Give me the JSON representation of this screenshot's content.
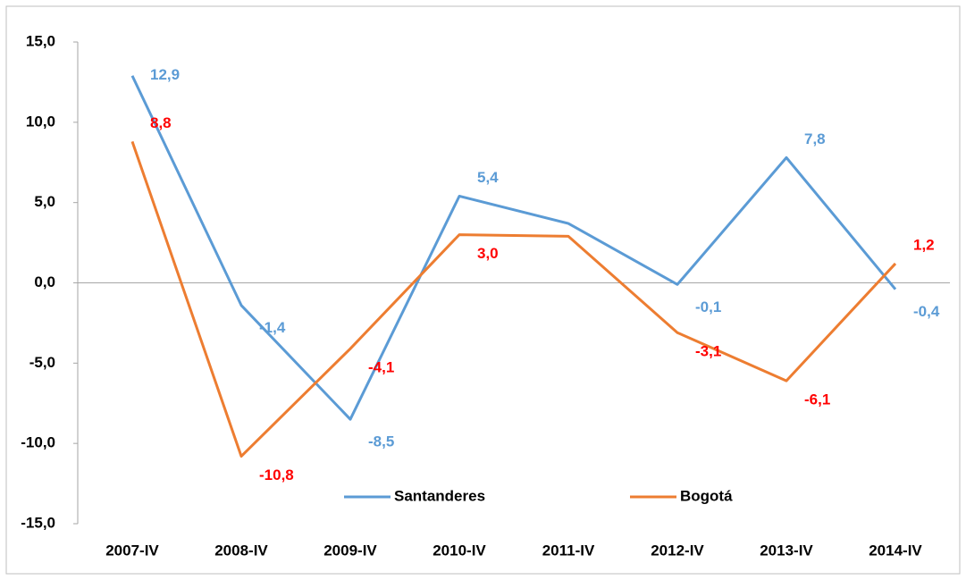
{
  "chart_data": {
    "type": "line",
    "categories": [
      "2007-IV",
      "2008-IV",
      "2009-IV",
      "2010-IV",
      "2011-IV",
      "2012-IV",
      "2013-IV",
      "2014-IV"
    ],
    "series": [
      {
        "name": "Santanderes",
        "color": "#5b9bd5",
        "label_color": "#5b9bd5",
        "values": [
          12.9,
          -1.4,
          -8.5,
          5.4,
          3.7,
          -0.1,
          7.8,
          -0.4
        ],
        "value_labels": [
          "12,9",
          "-1,4",
          "-8,5",
          "5,4",
          null,
          "-0,1",
          "7,8",
          "-0,4"
        ]
      },
      {
        "name": "Bogotá",
        "color": "#ed7d31",
        "label_color": "#ff0000",
        "values": [
          8.8,
          -10.8,
          -4.1,
          3.0,
          2.9,
          -3.1,
          -6.1,
          1.2
        ],
        "value_labels": [
          "8,8",
          "-10,8",
          "-4,1",
          "3,0",
          null,
          "-3,1",
          "-6,1",
          "1,2"
        ]
      }
    ],
    "ylim": [
      -15,
      15
    ],
    "yticks": [
      {
        "value": -15,
        "label": "-15,0"
      },
      {
        "value": -10,
        "label": "-10,0"
      },
      {
        "value": -5,
        "label": "-5,0"
      },
      {
        "value": 0,
        "label": "0,0"
      },
      {
        "value": 5,
        "label": "5,0"
      },
      {
        "value": 10,
        "label": "10,0"
      },
      {
        "value": 15,
        "label": "15,0"
      }
    ],
    "grid": false,
    "legend": "lower center"
  }
}
